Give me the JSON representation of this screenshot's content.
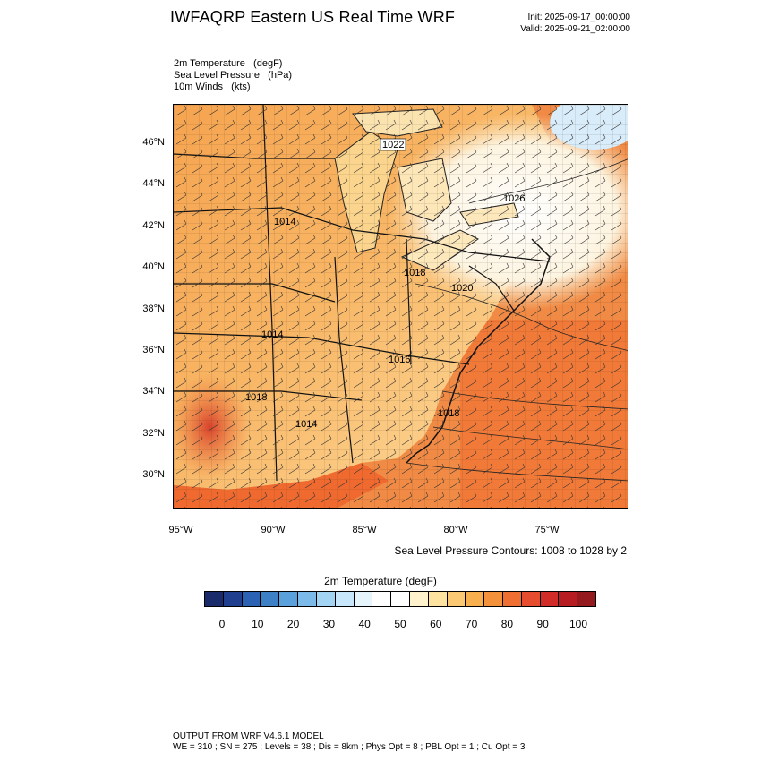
{
  "header": {
    "title": "IWFAQRP Eastern US Real Time WRF",
    "init": "Init: 2025-09-17_00:00:00",
    "valid": "Valid: 2025-09-21_02:00:00"
  },
  "fields": [
    "2m Temperature   (degF)",
    "Sea Level Pressure   (hPa)",
    "10m Winds   (kts)"
  ],
  "map": {
    "lat_labels": [
      "46°N",
      "44°N",
      "42°N",
      "40°N",
      "38°N",
      "36°N",
      "34°N",
      "32°N",
      "30°N"
    ],
    "lon_labels": [
      "95°W",
      "90°W",
      "85°W",
      "80°W",
      "75°W"
    ],
    "pressure_labels": [
      "1022",
      "1026",
      "1014",
      "1018",
      "1020",
      "1014",
      "1018",
      "1014",
      "1016",
      "1018"
    ],
    "land_color": "#f7b86a",
    "ocean_color": "#f47d3c",
    "cool_color": "#ffffff",
    "lake_color": "#fce7b4"
  },
  "contour_note": "Sea Level Pressure Contours: 1008 to 1028 by 2",
  "colorbar": {
    "title": "2m Temperature  (degF)",
    "colors": [
      "#1a2b6b",
      "#213f8f",
      "#2c62b3",
      "#3e80c6",
      "#5aa0db",
      "#7cbbe9",
      "#a4d4f4",
      "#c9e7fa",
      "#e6f4fc",
      "#ffffff",
      "#ffffff",
      "#fff2cc",
      "#fde2a0",
      "#fbc873",
      "#f8b04e",
      "#f4913b",
      "#ee6f31",
      "#e54d2e",
      "#d22c28",
      "#b81c23",
      "#951a1f"
    ],
    "labels": [
      "0",
      "10",
      "20",
      "30",
      "40",
      "50",
      "60",
      "70",
      "80",
      "90",
      "100"
    ]
  },
  "footer": {
    "line1": "OUTPUT FROM WRF V4.6.1 MODEL",
    "line2": "WE = 310 ; SN = 275 ; Levels = 38 ; Dis = 8km ; Phys Opt = 8 ; PBL Opt = 1 ; Cu Opt = 3"
  }
}
